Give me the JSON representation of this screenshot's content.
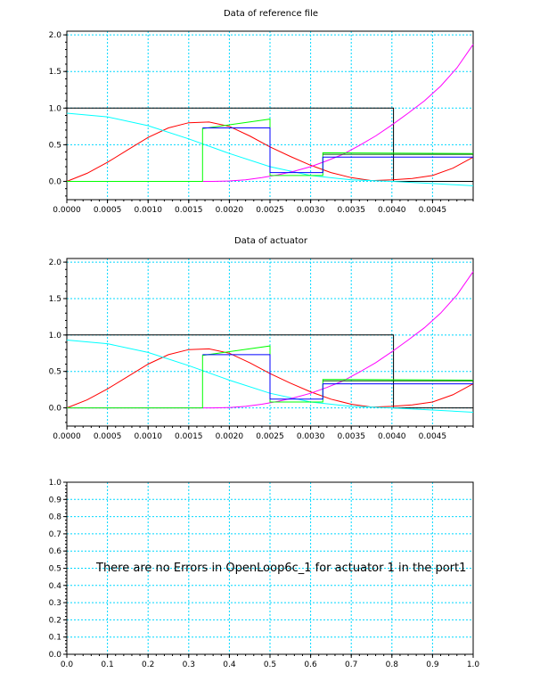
{
  "chart_data": [
    {
      "type": "line",
      "title": "Data of reference file",
      "xlim": [
        0,
        0.005
      ],
      "ylim": [
        -0.25,
        2.05
      ],
      "xticks": [
        0.0,
        0.0005,
        0.001,
        0.0015,
        0.002,
        0.0025,
        0.003,
        0.0035,
        0.004,
        0.0045
      ],
      "xtick_labels": [
        "0.0000",
        "0.0005",
        "0.0010",
        "0.0015",
        "0.0020",
        "0.0025",
        "0.0030",
        "0.0035",
        "0.0040",
        "0.0045"
      ],
      "yticks": [
        0.0,
        0.5,
        1.0,
        1.5,
        2.0
      ],
      "ytick_labels": [
        "0.0",
        "0.5",
        "1.0",
        "1.5",
        "2.0"
      ],
      "grid": true,
      "series": [
        {
          "color": "#000000",
          "x": [
            0,
            0.00402,
            0.00402,
            0.005
          ],
          "y": [
            1.0,
            1.0,
            0.0,
            0.0
          ]
        },
        {
          "color": "#ff0000",
          "x": [
            0,
            0.00025,
            0.0005,
            0.00075,
            0.001,
            0.00125,
            0.0015,
            0.00175,
            0.002,
            0.00225,
            0.0025,
            0.00275,
            0.003,
            0.00325,
            0.0035,
            0.00375,
            0.004,
            0.00425,
            0.0045,
            0.00475,
            0.005
          ],
          "y": [
            0.0,
            0.11,
            0.26,
            0.43,
            0.6,
            0.73,
            0.8,
            0.81,
            0.75,
            0.62,
            0.47,
            0.34,
            0.22,
            0.12,
            0.05,
            0.01,
            0.02,
            0.04,
            0.08,
            0.18,
            0.33
          ]
        },
        {
          "color": "#00ffff",
          "x": [
            0,
            0.0005,
            0.001,
            0.0015,
            0.002,
            0.0025,
            0.003,
            0.0035,
            0.004,
            0.0045,
            0.005
          ],
          "y": [
            0.93,
            0.88,
            0.76,
            0.58,
            0.38,
            0.2,
            0.08,
            0.02,
            0.0,
            -0.03,
            -0.06
          ]
        },
        {
          "color": "#ff00ff",
          "x": [
            0,
            0.0018,
            0.002,
            0.0022,
            0.0024,
            0.0026,
            0.0028,
            0.003,
            0.0032,
            0.0034,
            0.0036,
            0.0038,
            0.004,
            0.0042,
            0.0044,
            0.0046,
            0.0048,
            0.005
          ],
          "y": [
            0.0,
            0.0,
            0.005,
            0.02,
            0.05,
            0.09,
            0.14,
            0.2,
            0.28,
            0.37,
            0.49,
            0.62,
            0.77,
            0.93,
            1.1,
            1.3,
            1.55,
            1.87
          ]
        },
        {
          "color": "#00ff00",
          "x": [
            0,
            0.00167,
            0.00167,
            0.0025,
            0.0025,
            0.00315,
            0.00315,
            0.005
          ],
          "y": [
            0.0,
            0.0,
            0.72,
            0.85,
            0.08,
            0.08,
            0.39,
            0.38
          ]
        },
        {
          "color": "#0000ff",
          "x": [
            0.00167,
            0.0025,
            0.0025,
            0.00315,
            0.00315,
            0.005
          ],
          "y": [
            0.73,
            0.73,
            0.12,
            0.12,
            0.33,
            0.33
          ]
        },
        {
          "color": "#006400",
          "x": [
            0.00315,
            0.005
          ],
          "y": [
            0.37,
            0.37
          ]
        }
      ]
    },
    {
      "type": "line",
      "title": "Data of actuator",
      "xlim": [
        0,
        0.005
      ],
      "ylim": [
        -0.25,
        2.05
      ],
      "xticks": [
        0.0,
        0.0005,
        0.001,
        0.0015,
        0.002,
        0.0025,
        0.003,
        0.0035,
        0.004,
        0.0045
      ],
      "xtick_labels": [
        "0.0000",
        "0.0005",
        "0.0010",
        "0.0015",
        "0.0020",
        "0.0025",
        "0.0030",
        "0.0035",
        "0.0040",
        "0.0045"
      ],
      "yticks": [
        0.0,
        0.5,
        1.0,
        1.5,
        2.0
      ],
      "ytick_labels": [
        "0.0",
        "0.5",
        "1.0",
        "1.5",
        "2.0"
      ],
      "grid": true,
      "series": [
        {
          "color": "#000000",
          "x": [
            0,
            0.00402,
            0.00402,
            0.005
          ],
          "y": [
            1.0,
            1.0,
            0.0,
            0.0
          ]
        },
        {
          "color": "#ff0000",
          "x": [
            0,
            0.00025,
            0.0005,
            0.00075,
            0.001,
            0.00125,
            0.0015,
            0.00175,
            0.002,
            0.00225,
            0.0025,
            0.00275,
            0.003,
            0.00325,
            0.0035,
            0.00375,
            0.004,
            0.00425,
            0.0045,
            0.00475,
            0.005
          ],
          "y": [
            0.0,
            0.11,
            0.26,
            0.43,
            0.6,
            0.73,
            0.8,
            0.81,
            0.75,
            0.62,
            0.47,
            0.34,
            0.22,
            0.12,
            0.05,
            0.01,
            0.02,
            0.04,
            0.08,
            0.18,
            0.33
          ]
        },
        {
          "color": "#00ffff",
          "x": [
            0,
            0.0005,
            0.001,
            0.0015,
            0.002,
            0.0025,
            0.003,
            0.0035,
            0.004,
            0.0045,
            0.005
          ],
          "y": [
            0.93,
            0.88,
            0.76,
            0.58,
            0.38,
            0.2,
            0.08,
            0.02,
            0.0,
            -0.03,
            -0.06
          ]
        },
        {
          "color": "#ff00ff",
          "x": [
            0,
            0.0018,
            0.002,
            0.0022,
            0.0024,
            0.0026,
            0.0028,
            0.003,
            0.0032,
            0.0034,
            0.0036,
            0.0038,
            0.004,
            0.0042,
            0.0044,
            0.0046,
            0.0048,
            0.005
          ],
          "y": [
            0.0,
            0.0,
            0.005,
            0.02,
            0.05,
            0.09,
            0.14,
            0.2,
            0.28,
            0.37,
            0.49,
            0.62,
            0.77,
            0.93,
            1.1,
            1.3,
            1.55,
            1.87
          ]
        },
        {
          "color": "#00ff00",
          "x": [
            0,
            0.00167,
            0.00167,
            0.0025,
            0.0025,
            0.00315,
            0.00315,
            0.005
          ],
          "y": [
            0.0,
            0.0,
            0.72,
            0.85,
            0.08,
            0.08,
            0.39,
            0.38
          ]
        },
        {
          "color": "#0000ff",
          "x": [
            0.00167,
            0.0025,
            0.0025,
            0.00315,
            0.00315,
            0.005
          ],
          "y": [
            0.73,
            0.73,
            0.12,
            0.12,
            0.33,
            0.33
          ]
        },
        {
          "color": "#006400",
          "x": [
            0.00315,
            0.005
          ],
          "y": [
            0.37,
            0.37
          ]
        }
      ]
    },
    {
      "type": "line",
      "title": "",
      "xlim": [
        0,
        1
      ],
      "ylim": [
        0,
        1
      ],
      "xticks": [
        0.0,
        0.1,
        0.2,
        0.3,
        0.4,
        0.5,
        0.6,
        0.7,
        0.8,
        0.9,
        1.0
      ],
      "xtick_labels": [
        "0.0",
        "0.1",
        "0.2",
        "0.3",
        "0.4",
        "0.5",
        "0.6",
        "0.7",
        "0.8",
        "0.9",
        "1.0"
      ],
      "yticks": [
        0.0,
        0.1,
        0.2,
        0.3,
        0.4,
        0.5,
        0.6,
        0.7,
        0.8,
        0.9,
        1.0
      ],
      "ytick_labels": [
        "0.0",
        "0.1",
        "0.2",
        "0.3",
        "0.4",
        "0.5",
        "0.6",
        "0.7",
        "0.8",
        "0.9",
        "1.0"
      ],
      "grid": true,
      "series": [],
      "annotation": "There are no Errors in OpenLoop6c_1 for actuator 1 in the port1"
    }
  ]
}
